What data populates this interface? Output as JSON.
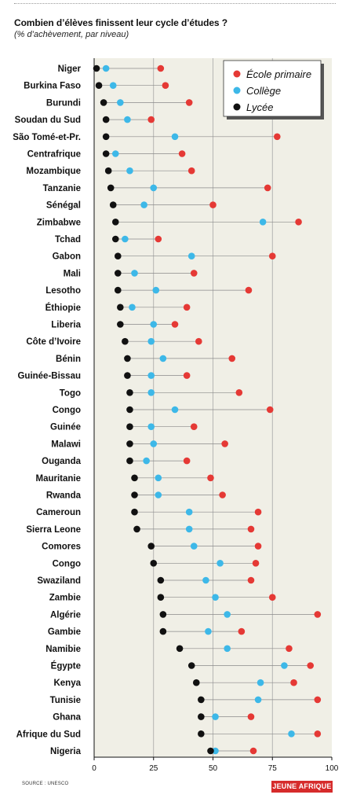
{
  "header": {
    "title": "Combien d’élèves finissent leur cycle d’études ?",
    "subtitle": "(% d’achèvement, par niveau)"
  },
  "footer": {
    "source": "SOURCE : UNESCO",
    "brand": "JEUNE AFRIQUE"
  },
  "colors": {
    "primaire": "#e53935",
    "college": "#3db8e8",
    "lycee": "#111111",
    "plot_bg": "#f0efe6",
    "grid": "#a7a7a7",
    "connector": "#8a8a8a"
  },
  "chart_data": {
    "type": "dot",
    "title": "Combien d’élèves finissent leur cycle d’études ?",
    "subtitle": "(% d’achèvement, par niveau)",
    "xlim": [
      0,
      100
    ],
    "xticks": [
      0,
      25,
      50,
      75,
      100
    ],
    "grid": true,
    "legend_position": "top-right",
    "categories": [
      "Niger",
      "Burkina Faso",
      "Burundi",
      "Soudan du Sud",
      "São Tomé-et-Pr.",
      "Centrafrique",
      "Mozambique",
      "Tanzanie",
      "Sénégal",
      "Zimbabwe",
      "Tchad",
      "Gabon",
      "Mali",
      "Lesotho",
      "Éthiopie",
      "Liberia",
      "Côte d’Ivoire",
      "Bénin",
      "Guinée-Bissau",
      "Togo",
      "Congo",
      "Guinée",
      "Malawi",
      "Ouganda",
      "Mauritanie",
      "Rwanda",
      "Cameroun",
      "Sierra Leone",
      "Comores",
      "Congo",
      "Swaziland",
      "Zambie",
      "Algérie",
      "Gambie",
      "Namibie",
      "Égypte",
      "Kenya",
      "Tunisie",
      "Ghana",
      "Afrique du Sud",
      "Nigeria"
    ],
    "series": [
      {
        "name": "École primaire",
        "color": "#e53935",
        "values": [
          28,
          30,
          40,
          24,
          77,
          37,
          41,
          73,
          50,
          86,
          27,
          75,
          42,
          65,
          39,
          34,
          44,
          58,
          39,
          61,
          74,
          42,
          55,
          39,
          49,
          54,
          69,
          66,
          69,
          68,
          66,
          75,
          94,
          62,
          82,
          91,
          84,
          94,
          66,
          94,
          67
        ]
      },
      {
        "name": "Collège",
        "color": "#3db8e8",
        "values": [
          5,
          8,
          11,
          14,
          34,
          9,
          15,
          25,
          21,
          71,
          13,
          41,
          17,
          26,
          16,
          25,
          24,
          29,
          24,
          24,
          34,
          24,
          25,
          22,
          27,
          27,
          40,
          40,
          42,
          53,
          47,
          51,
          56,
          48,
          56,
          80,
          70,
          69,
          51,
          83,
          51
        ]
      },
      {
        "name": "Lycée",
        "color": "#111111",
        "values": [
          1,
          2,
          4,
          5,
          5,
          5,
          6,
          7,
          8,
          9,
          9,
          10,
          10,
          10,
          11,
          11,
          13,
          14,
          14,
          15,
          15,
          15,
          15,
          15,
          17,
          17,
          17,
          18,
          24,
          25,
          28,
          28,
          29,
          29,
          36,
          41,
          43,
          45,
          45,
          45,
          49
        ]
      }
    ]
  }
}
